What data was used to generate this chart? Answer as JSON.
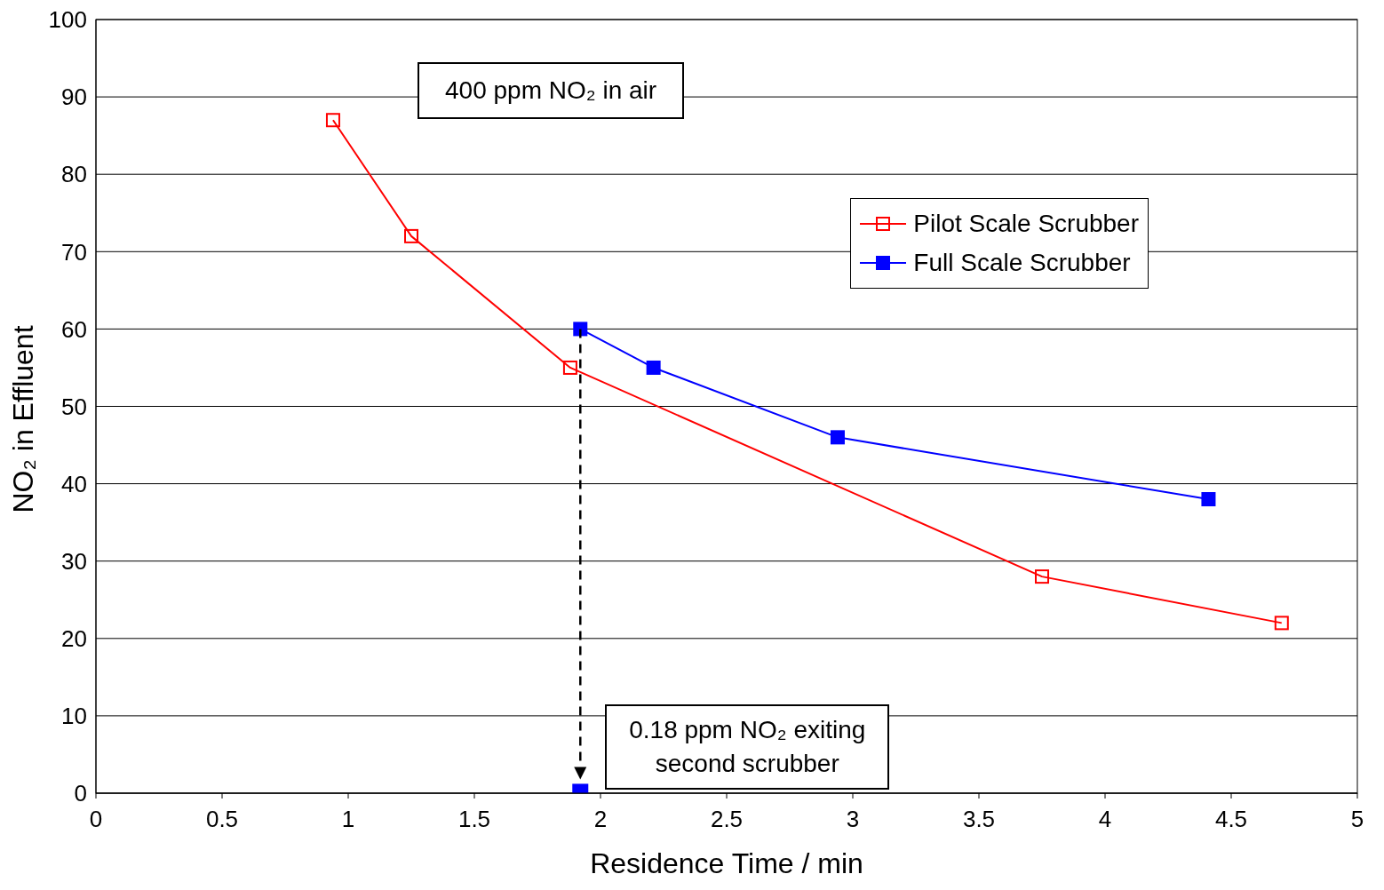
{
  "chart_data": {
    "type": "line",
    "xlabel": "Residence Time / min",
    "ylabel": "NO₂ in Effluent",
    "xlim": [
      0,
      5
    ],
    "xticks": [
      0,
      0.5,
      1,
      1.5,
      2,
      2.5,
      3,
      3.5,
      4,
      4.5,
      5
    ],
    "ylim": [
      0,
      100
    ],
    "yticks": [
      0,
      10,
      20,
      30,
      40,
      50,
      60,
      70,
      80,
      90,
      100
    ],
    "grid": "y",
    "legend": "top right",
    "marker": "square",
    "line_style": "solid",
    "series": [
      {
        "name": "Pilot Scale Scrubber",
        "color": "#ff0000",
        "x": [
          0.94,
          1.25,
          1.88,
          3.75,
          4.7
        ],
        "values": [
          87,
          72,
          55,
          28,
          22
        ]
      },
      {
        "name": "Full Scale Scrubber",
        "color": "#0000ff",
        "x": [
          1.92,
          2.21,
          2.94,
          4.41
        ],
        "values": [
          60,
          55,
          46,
          38
        ]
      },
      {
        "type": "scatter",
        "color": "#0000ff",
        "x": [
          1.92
        ],
        "values": [
          0.18
        ]
      }
    ],
    "annotations": [
      "400 ppm NO₂ in air",
      {
        "text": "0.18 ppm NO₂ exiting second scrubber",
        "x": 1.92,
        "y": 0.18
      }
    ]
  }
}
